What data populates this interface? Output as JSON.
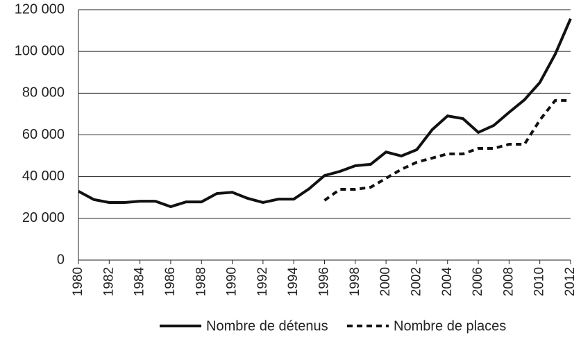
{
  "chart_data": {
    "type": "line",
    "x": [
      1980,
      1981,
      1982,
      1983,
      1984,
      1985,
      1986,
      1987,
      1988,
      1989,
      1990,
      1991,
      1992,
      1993,
      1994,
      1995,
      1996,
      1997,
      1998,
      1999,
      2000,
      2001,
      2002,
      2003,
      2004,
      2005,
      2006,
      2007,
      2008,
      2009,
      2010,
      2011,
      2012
    ],
    "series": [
      {
        "name": "Nombre de détenus",
        "color": "#111111",
        "dashed": false,
        "values": [
          33000,
          29000,
          27600,
          27600,
          28200,
          28200,
          25600,
          27900,
          27900,
          31900,
          32500,
          29600,
          27600,
          29200,
          29200,
          34200,
          40500,
          42500,
          45200,
          45900,
          51800,
          49900,
          52900,
          62500,
          69100,
          67800,
          61200,
          64500,
          70800,
          76800,
          85100,
          98700,
          115700
        ]
      },
      {
        "name": "Nombre de places",
        "color": "#111111",
        "dashed": true,
        "values": [
          null,
          null,
          null,
          null,
          null,
          null,
          null,
          null,
          null,
          null,
          null,
          null,
          null,
          null,
          null,
          null,
          28600,
          33900,
          33900,
          34900,
          39200,
          43500,
          46900,
          48900,
          50900,
          50900,
          53500,
          53500,
          55500,
          55500,
          67100,
          76500,
          76500
        ]
      }
    ],
    "xlim": [
      1980,
      2012
    ],
    "xticks": [
      1980,
      1982,
      1984,
      1986,
      1988,
      1990,
      1992,
      1994,
      1996,
      1998,
      2000,
      2002,
      2004,
      2006,
      2008,
      2010,
      2012
    ],
    "ylim": [
      0,
      120000
    ],
    "yticks": [
      0,
      {
        "value": 20000,
        "label": "20 000"
      },
      {
        "value": 40000,
        "label": "40 000"
      },
      {
        "value": 60000,
        "label": "60 000"
      },
      {
        "value": 80000,
        "label": "80 000"
      },
      {
        "value": 100000,
        "label": "100 000"
      },
      {
        "value": 120000,
        "label": "120 000"
      }
    ],
    "grid": true,
    "legend": "bottom"
  }
}
